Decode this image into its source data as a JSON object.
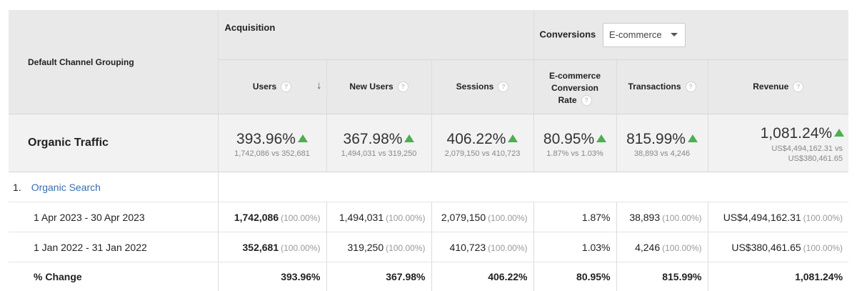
{
  "header": {
    "dimension": "Default Channel Grouping",
    "group_acquisition": "Acquisition",
    "group_conversions": "Conversions",
    "conversions_select": "E-commerce",
    "columns": {
      "users": "Users",
      "new_users": "New Users",
      "sessions": "Sessions",
      "conv_rate_line1": "E-commerce",
      "conv_rate_line2": "Conversion",
      "conv_rate_line3": "Rate",
      "transactions": "Transactions",
      "revenue": "Revenue"
    }
  },
  "summary": {
    "label": "Organic Traffic",
    "users": {
      "pct": "393.96%",
      "cmp": "1,742,086 vs 352,681"
    },
    "new_users": {
      "pct": "367.98%",
      "cmp": "1,494,031 vs 319,250"
    },
    "sessions": {
      "pct": "406.22%",
      "cmp": "2,079,150 vs 410,723"
    },
    "conv_rate": {
      "pct": "80.95%",
      "cmp": "1.87% vs 1.03%"
    },
    "transactions": {
      "pct": "815.99%",
      "cmp": "38,893 vs 4,246"
    },
    "revenue": {
      "pct": "1,081.24%",
      "cmp1": "US$4,494,162.31 vs",
      "cmp2": "US$380,461.65"
    }
  },
  "group_row": {
    "index": "1.",
    "name": "Organic Search"
  },
  "rows": [
    {
      "label": "1 Apr 2023 - 30 Apr 2023",
      "users": "1,742,086",
      "users_pct": "(100.00%)",
      "new_users": "1,494,031",
      "new_users_pct": "(100.00%)",
      "sessions": "2,079,150",
      "sessions_pct": "(100.00%)",
      "conv_rate": "1.87%",
      "transactions": "38,893",
      "transactions_pct": "(100.00%)",
      "revenue": "US$4,494,162.31",
      "revenue_pct": "(100.00%)"
    },
    {
      "label": "1 Jan 2022 - 31 Jan 2022",
      "users": "352,681",
      "users_pct": "(100.00%)",
      "new_users": "319,250",
      "new_users_pct": "(100.00%)",
      "sessions": "410,723",
      "sessions_pct": "(100.00%)",
      "conv_rate": "1.03%",
      "transactions": "4,246",
      "transactions_pct": "(100.00%)",
      "revenue": "US$380,461.65",
      "revenue_pct": "(100.00%)"
    }
  ],
  "change_row": {
    "label": "% Change",
    "users": "393.96%",
    "new_users": "367.98%",
    "sessions": "406.22%",
    "conv_rate": "80.95%",
    "transactions": "815.99%",
    "revenue": "1,081.24%"
  },
  "icons": {
    "help": "question-circle-icon",
    "sort": "arrow-down-icon",
    "up": "green-up-triangle-icon",
    "caret": "caret-down-icon"
  },
  "colors": {
    "up_arrow": "#4caf50",
    "link": "#3a6dab",
    "header_bg": "#e9e9e9"
  }
}
